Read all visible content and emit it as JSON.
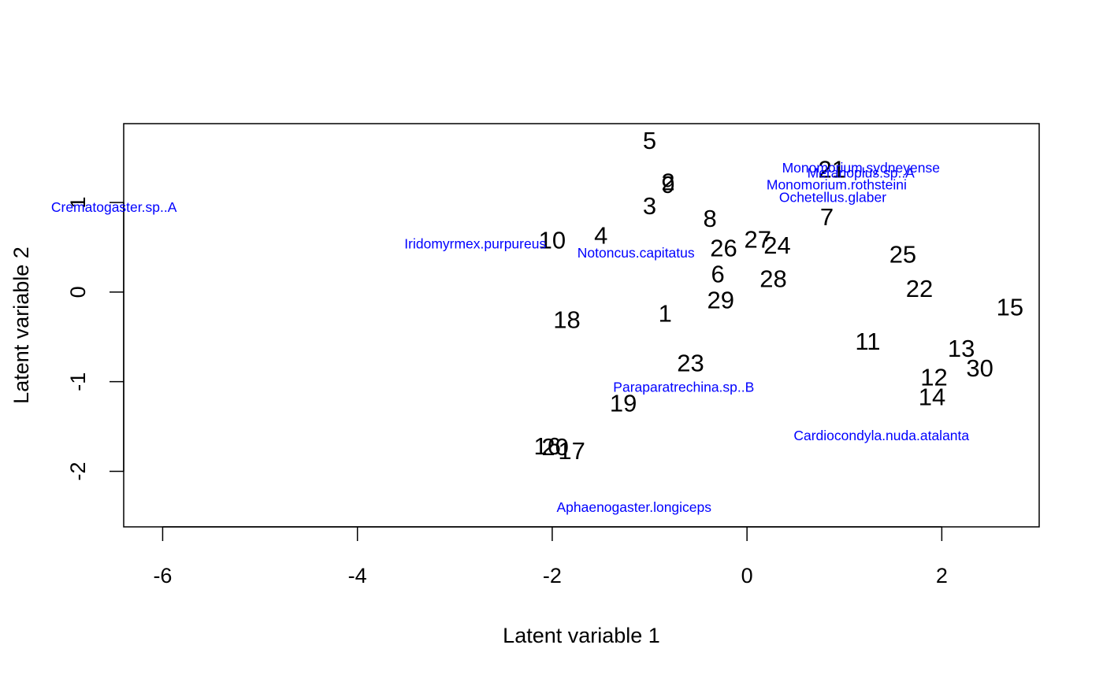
{
  "chart_data": {
    "type": "scatter",
    "title": "",
    "xlabel": "Latent variable  1",
    "ylabel": "Latent variable  2",
    "xlim": [
      -6.4,
      3.0
    ],
    "ylim": [
      -2.62,
      1.88
    ],
    "xticks": [
      -6,
      -4,
      -2,
      0,
      2
    ],
    "yticks": [
      -2,
      -1,
      0,
      1
    ],
    "grid": false,
    "legend": "none",
    "colors": {
      "sites": "#000000",
      "species": "#0000ff"
    },
    "series": [
      {
        "points": [
          {
            "label": "1",
            "x": -0.84,
            "y": -0.24
          },
          {
            "label": "2",
            "x": -0.81,
            "y": 1.23
          },
          {
            "label": "3",
            "x": -1.0,
            "y": 0.96
          },
          {
            "label": "4",
            "x": -1.5,
            "y": 0.63
          },
          {
            "label": "5",
            "x": -1.0,
            "y": 1.69
          },
          {
            "label": "6",
            "x": -0.3,
            "y": 0.2
          },
          {
            "label": "7",
            "x": 0.82,
            "y": 0.84
          },
          {
            "label": "8",
            "x": -0.38,
            "y": 0.82
          },
          {
            "label": "9",
            "x": -0.81,
            "y": 1.2
          },
          {
            "label": "10",
            "x": -2.0,
            "y": 0.58
          },
          {
            "label": "11",
            "x": 1.24,
            "y": -0.55
          },
          {
            "label": "12",
            "x": 1.92,
            "y": -0.95
          },
          {
            "label": "13",
            "x": 2.2,
            "y": -0.63
          },
          {
            "label": "14",
            "x": 1.9,
            "y": -1.17
          },
          {
            "label": "15",
            "x": 2.7,
            "y": -0.17
          },
          {
            "label": "16",
            "x": -2.05,
            "y": -1.72
          },
          {
            "label": "17",
            "x": -1.8,
            "y": -1.77
          },
          {
            "label": "18",
            "x": -1.85,
            "y": -0.31
          },
          {
            "label": "19",
            "x": -1.27,
            "y": -1.24
          },
          {
            "label": "20",
            "x": -1.97,
            "y": -1.73
          },
          {
            "label": "21",
            "x": 0.87,
            "y": 1.37
          },
          {
            "label": "22",
            "x": 1.77,
            "y": 0.04
          },
          {
            "label": "23",
            "x": -0.58,
            "y": -0.79
          },
          {
            "label": "24",
            "x": 0.31,
            "y": 0.52
          },
          {
            "label": "25",
            "x": 1.6,
            "y": 0.42
          },
          {
            "label": "26",
            "x": -0.24,
            "y": 0.49
          },
          {
            "label": "27",
            "x": 0.11,
            "y": 0.59
          },
          {
            "label": "28",
            "x": 0.27,
            "y": 0.15
          },
          {
            "label": "29",
            "x": -0.27,
            "y": -0.09
          },
          {
            "label": "30",
            "x": 2.39,
            "y": -0.85
          }
        ]
      },
      {
        "points": [
          {
            "label": "Aphaenogaster.longiceps",
            "x": -1.16,
            "y": -2.4
          },
          {
            "label": "Cardiocondyla.nuda.atalanta",
            "x": 1.38,
            "y": -1.6
          },
          {
            "label": "Paraparatrechina.sp..B",
            "x": -0.65,
            "y": -1.06
          },
          {
            "label": "Iridomyrmex.purpureus",
            "x": -2.79,
            "y": 0.54
          },
          {
            "label": "Notoncus.capitatus",
            "x": -1.14,
            "y": 0.44
          },
          {
            "label": "Monomorium.sydneyense",
            "x": 1.17,
            "y": 1.39
          },
          {
            "label": "Meranoplus.sp..A",
            "x": 1.17,
            "y": 1.33
          },
          {
            "label": "Monomorium.rothsteini",
            "x": 0.92,
            "y": 1.2
          },
          {
            "label": "Ochetellus.glaber",
            "x": 0.88,
            "y": 1.06
          },
          {
            "label": "Crematogaster.sp..A",
            "x": -6.5,
            "y": 0.95
          }
        ]
      }
    ]
  }
}
